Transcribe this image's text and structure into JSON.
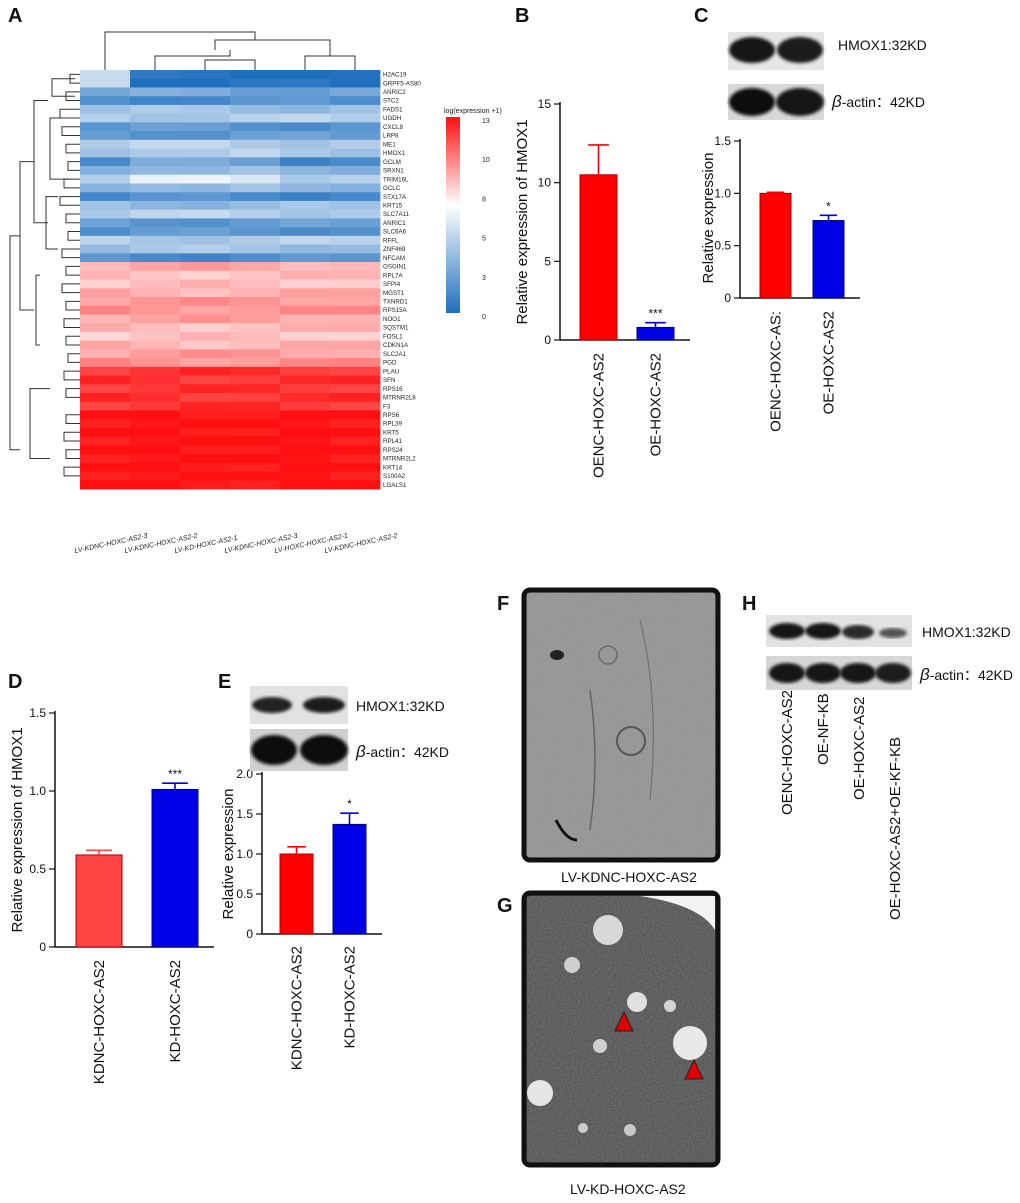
{
  "panel_letters": [
    "A",
    "B",
    "C",
    "D",
    "E",
    "F",
    "G",
    "H"
  ],
  "colors": {
    "red": "#ff0000",
    "blue": "#0000e6",
    "heat_high": "#ff0000",
    "heat_mid": "#ffffff",
    "heat_low": "#1f6fbf",
    "gene_highlight": "#e00000"
  },
  "panel_A": {
    "genes": [
      "H2AC19",
      "GRPF5-AS80",
      "ANRIC2",
      "STC2",
      "FADS1",
      "UGDH",
      "CXCL8",
      "LRP8",
      "ME1",
      "HMOX1",
      "GCLM",
      "SRXN1",
      "TRIM16L",
      "GCLC",
      "STX17A",
      "KRT15",
      "SLC7A11",
      "ANRIC1",
      "SLC6A6",
      "RFFL",
      "ZNF469",
      "NFCAM",
      "OSGIN1",
      "RPL7A",
      "SFPI4",
      "MGST1",
      "TXNRD1",
      "RPS15A",
      "NOO1",
      "SQSTM1",
      "FOSL1",
      "CDKN1A",
      "SLC2A1",
      "PGD",
      "PLAU",
      "SFN",
      "RPS16",
      "MTRNR2L8",
      "F3",
      "RPS6",
      "RPL39",
      "KRT5",
      "RPL41",
      "RPS24",
      "MTRNR2L2",
      "KRT14",
      "S100A2",
      "LGALS1"
    ],
    "highlight_gene": "HMOX1",
    "samples": [
      "LV-KDNC-HOXC-AS2-3",
      "LV-KDNC-HOXC-AS2-2",
      "LV-KD-HOXC-AS2-1",
      "LV-KDNC-HOXC-AS2-3",
      "LV-HOXC-HOXC-AS2-1",
      "LV-KDNC-HOXC-AS2-2"
    ],
    "legend_title": "log(expression +1)",
    "legend_ticks": [
      "13",
      "10",
      "8",
      "5",
      "3",
      "0"
    ]
  },
  "chart_data": [
    {
      "panel": "B",
      "type": "bar",
      "categories": [
        "OENC-HOXC-AS2",
        "OE-HOXC-AS2"
      ],
      "values": [
        10.5,
        0.8
      ],
      "errors": [
        1.9,
        0.3
      ],
      "ylabel": "Relative expression of HMOX1",
      "ylim": [
        0,
        15
      ],
      "yticks": [
        "0",
        "5",
        "10",
        "15"
      ],
      "annotations": [
        "",
        "***"
      ],
      "colors": [
        "#ff0000",
        "#0000e6"
      ]
    },
    {
      "panel": "C",
      "type": "bar",
      "categories": [
        "OENC-HOXC-AS:",
        "OE-HOXC-AS2"
      ],
      "values": [
        1.0,
        0.74
      ],
      "errors": [
        0.01,
        0.05
      ],
      "ylabel": "Relative expression",
      "ylim": [
        0,
        1.5
      ],
      "yticks": [
        "0",
        "0.5",
        "1.0",
        "1.5"
      ],
      "annotations": [
        "",
        "*"
      ],
      "colors": [
        "#ff0000",
        "#0000e6"
      ]
    },
    {
      "panel": "D",
      "type": "bar",
      "categories": [
        "KDNC-HOXC-AS2",
        "KD-HOXC-AS2"
      ],
      "values": [
        0.59,
        1.01
      ],
      "errors": [
        0.03,
        0.04
      ],
      "ylabel": "Relative expression of HMOX1",
      "ylim": [
        0,
        1.5
      ],
      "yticks": [
        "0",
        "0.5",
        "1.0",
        "1.5"
      ],
      "annotations": [
        "",
        "***"
      ],
      "colors": [
        "#ff4444",
        "#0000e6"
      ]
    },
    {
      "panel": "E",
      "type": "bar",
      "categories": [
        "KDNC-HOXC-AS2",
        "KD-HOXC-AS2"
      ],
      "values": [
        1.0,
        1.37
      ],
      "errors": [
        0.09,
        0.14
      ],
      "ylabel": "Relative expression",
      "ylim": [
        0,
        2.0
      ],
      "yticks": [
        "0",
        "0.5",
        "1.0",
        "1.5",
        "2.0"
      ],
      "annotations": [
        "",
        "*"
      ],
      "colors": [
        "#ff0000",
        "#0000e6"
      ]
    }
  ],
  "blots": {
    "C": {
      "top": "HMOX1:32KD",
      "bottom_prefix": "β",
      "bottom": "-actin：42KD"
    },
    "E": {
      "top": "HMOX1:32KD",
      "bottom_prefix": "β",
      "bottom": "-actin：42KD"
    },
    "H": {
      "top": "HMOX1:32KD",
      "bottom_prefix": "β",
      "bottom": "-actin：42KD",
      "lanes": [
        "OENC-HOXC-AS2",
        "OE-NF-KB",
        "OE-HOXC-AS2",
        "OE-HOXC-AS2+OE-KF-KB"
      ]
    }
  },
  "micrographs": {
    "F": "LV-KDNC-HOXC-AS2",
    "G": "LV-KD-HOXC-AS2"
  }
}
